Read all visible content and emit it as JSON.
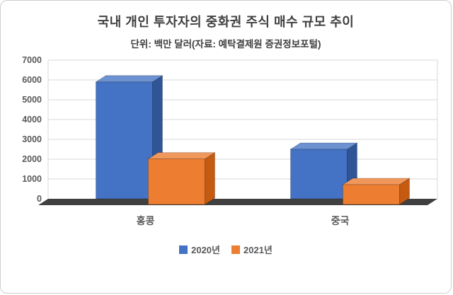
{
  "chart_data": {
    "type": "bar",
    "style": "3d-clustered-column",
    "title": "국내 개인 투자자의 중화권 주식 매수 규모 추이",
    "subtitle": "단위: 백만 달러(자료: 예탁결제원 증권정보포털)",
    "categories": [
      "홍콩",
      "중국"
    ],
    "series": [
      {
        "name": "2020년",
        "color": "#4472C4",
        "top_color": "#6C92D2",
        "side_color": "#2F5597",
        "values": [
          5900,
          2500
        ]
      },
      {
        "name": "2021년",
        "color": "#ED7D31",
        "top_color": "#F0975C",
        "side_color": "#C55A11",
        "values": [
          2300,
          1000
        ]
      }
    ],
    "ylim": [
      0,
      7000
    ],
    "ytick_step": 1000,
    "grid": true,
    "legend_position": "bottom",
    "axis_color": "#595959",
    "gridline_color": "#D9D9D9",
    "floor_color": "#404040"
  }
}
